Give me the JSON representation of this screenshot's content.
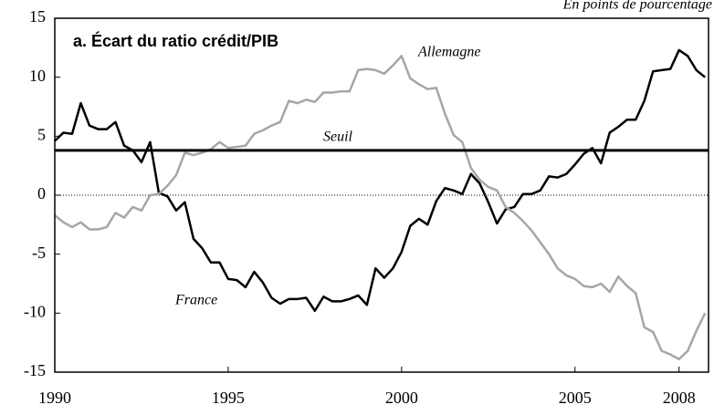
{
  "chart_data": {
    "type": "line",
    "title": "a. Écart du ratio crédit/PIB",
    "subtitle": "En points de pourcentage",
    "x": [
      1990,
      1990.25,
      1990.5,
      1990.75,
      1991,
      1991.25,
      1991.5,
      1991.75,
      1992,
      1992.25,
      1992.5,
      1992.75,
      1993,
      1993.25,
      1993.5,
      1993.75,
      1994,
      1994.25,
      1994.5,
      1994.75,
      1995,
      1995.25,
      1995.5,
      1995.75,
      1996,
      1996.25,
      1996.5,
      1996.75,
      1997,
      1997.25,
      1997.5,
      1997.75,
      1998,
      1998.25,
      1998.5,
      1998.75,
      1999,
      1999.25,
      1999.5,
      1999.75,
      2000,
      2000.25,
      2000.5,
      2000.75,
      2001,
      2001.25,
      2001.5,
      2001.75,
      2002,
      2002.25,
      2002.5,
      2002.75,
      2003,
      2003.25,
      2003.5,
      2003.75,
      2004,
      2004.25,
      2004.5,
      2004.75,
      2005,
      2005.25,
      2005.5,
      2005.75,
      2006,
      2006.25,
      2006.5,
      2006.75,
      2007,
      2007.25,
      2007.5,
      2007.75,
      2008,
      2008.25,
      2008.5,
      2008.75
    ],
    "series": [
      {
        "name": "France",
        "color": "#000000",
        "values": [
          4.6,
          5.3,
          5.2,
          7.8,
          5.9,
          5.6,
          5.6,
          6.2,
          4.2,
          3.8,
          2.8,
          4.5,
          0.2,
          -0.1,
          -1.3,
          -0.6,
          -3.7,
          -4.5,
          -5.7,
          -5.7,
          -7.1,
          -7.2,
          -7.8,
          -6.5,
          -7.4,
          -8.7,
          -9.2,
          -8.8,
          -8.8,
          -8.7,
          -9.8,
          -8.6,
          -9.0,
          -9.0,
          -8.8,
          -8.5,
          -9.3,
          -6.2,
          -7.0,
          -6.2,
          -4.8,
          -2.6,
          -2.0,
          -2.5,
          -0.5,
          0.6,
          0.4,
          0.1,
          1.8,
          1.0,
          -0.6,
          -2.4,
          -1.2,
          -1.0,
          0.1,
          0.1,
          0.4,
          1.6,
          1.5,
          1.8,
          2.6,
          3.5,
          4.0,
          2.7,
          5.3,
          5.8,
          6.4,
          6.4,
          8.0,
          10.5,
          10.6,
          10.7,
          12.3,
          11.8,
          10.6,
          10.0
        ]
      },
      {
        "name": "Allemagne",
        "color": "#a6a6a6",
        "values": [
          -1.7,
          -2.3,
          -2.7,
          -2.3,
          -2.9,
          -2.9,
          -2.7,
          -1.5,
          -1.9,
          -1.0,
          -1.3,
          0.0,
          0.1,
          0.8,
          1.7,
          3.6,
          3.4,
          3.6,
          3.9,
          4.5,
          4.0,
          4.1,
          4.2,
          5.2,
          5.5,
          5.9,
          6.2,
          8.0,
          7.8,
          8.1,
          7.9,
          8.7,
          8.7,
          8.8,
          8.8,
          10.6,
          10.7,
          10.6,
          10.3,
          11.0,
          11.8,
          9.9,
          9.4,
          9.0,
          9.1,
          6.9,
          5.1,
          4.5,
          2.3,
          1.3,
          0.7,
          0.4,
          -1.0,
          -1.5,
          -2.2,
          -3.0,
          -4.0,
          -5.0,
          -6.2,
          -6.8,
          -7.1,
          -7.7,
          -7.8,
          -7.5,
          -8.2,
          -6.9,
          -7.7,
          -8.3,
          -11.2,
          -11.6,
          -13.2,
          -13.5,
          -13.9,
          -13.2,
          -11.5,
          -10.0
        ]
      }
    ],
    "threshold": {
      "label": "Seuil",
      "value": 3.8,
      "color": "#000000"
    },
    "zero_line": true,
    "xlim": [
      1990,
      2008.85
    ],
    "xticks": [
      1990,
      1995,
      2000,
      2005,
      2008
    ],
    "ylim": [
      -15,
      15
    ],
    "yticks": [
      -15,
      -10,
      -5,
      0,
      5,
      10,
      15
    ],
    "grid": false
  }
}
